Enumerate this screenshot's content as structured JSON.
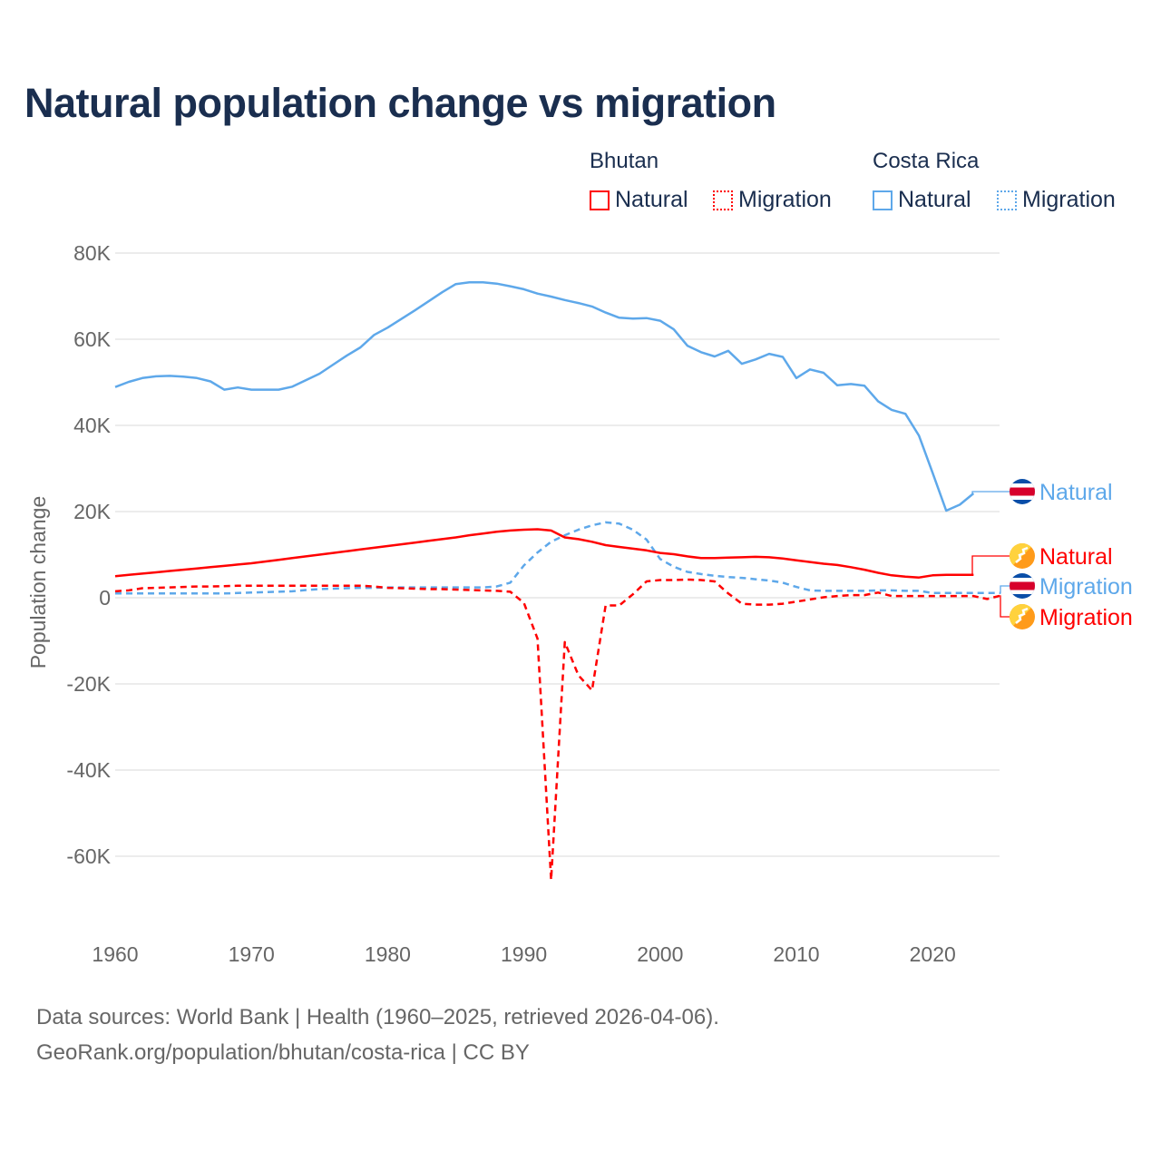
{
  "title": "Natural population change vs migration",
  "legend": {
    "groups": [
      {
        "name": "Bhutan",
        "items": [
          "Natural",
          "Migration"
        ],
        "color": "#ff0000"
      },
      {
        "name": "Costa Rica",
        "items": [
          "Natural",
          "Migration"
        ],
        "color": "#5ea8ea"
      }
    ]
  },
  "end_labels": [
    {
      "text": "Natural",
      "country": "Costa Rica",
      "icon": "costa-rica-flag-icon"
    },
    {
      "text": "Natural",
      "country": "Bhutan",
      "icon": "bhutan-flag-icon"
    },
    {
      "text": "Migration",
      "country": "Costa Rica",
      "icon": "costa-rica-flag-icon"
    },
    {
      "text": "Migration",
      "country": "Bhutan",
      "icon": "bhutan-flag-icon"
    }
  ],
  "footer": {
    "line1": "Data sources: World Bank | Health (1960–2025, retrieved 2026-04-06).",
    "line2": "GeoRank.org/population/bhutan/costa-rica | CC BY"
  },
  "chart_data": {
    "type": "line",
    "title": "Natural population change vs migration",
    "xlabel": "",
    "ylabel": "Population change",
    "xlim": [
      1960,
      2025
    ],
    "ylim": [
      -70000,
      85000
    ],
    "x_ticks": [
      1960,
      1970,
      1980,
      1990,
      2000,
      2010,
      2020
    ],
    "x_tick_labels": [
      "1960",
      "1970",
      "1980",
      "1990",
      "2000",
      "2010",
      "2020"
    ],
    "y_ticks": [
      80000,
      60000,
      40000,
      20000,
      0,
      -20000,
      -40000,
      -60000
    ],
    "y_tick_labels": [
      "80K",
      "60K",
      "40K",
      "20K",
      "0",
      "-20K",
      "-40K",
      "-60K"
    ],
    "grid": true,
    "legend_position": "top-right",
    "series": [
      {
        "name": "Costa Rica Natural",
        "country": "Costa Rica",
        "kind": "Natural",
        "color": "#5ea8ea",
        "dash": false,
        "start_year": 1960,
        "values": [
          48900,
          50100,
          51000,
          51400,
          51500,
          51300,
          51000,
          50200,
          48300,
          48800,
          48300,
          48300,
          48300,
          49000,
          50500,
          52000,
          54100,
          56200,
          58100,
          61000,
          62700,
          64700,
          66700,
          68800,
          70900,
          72800,
          73200,
          73200,
          72900,
          72300,
          71600,
          70600,
          69900,
          69100,
          68400,
          67600,
          66200,
          65000,
          64800,
          64900,
          64300,
          62300,
          58500,
          57000,
          56000,
          57300,
          54300,
          55300,
          56600,
          55900,
          51000,
          53000,
          52200,
          49300,
          49600,
          49200,
          45600,
          43600,
          42700,
          37600,
          29000,
          20200,
          21600,
          24200
        ]
      },
      {
        "name": "Bhutan Natural",
        "country": "Bhutan",
        "kind": "Natural",
        "color": "#ff0000",
        "dash": false,
        "start_year": 1960,
        "values": [
          5000,
          5300,
          5600,
          5900,
          6200,
          6500,
          6800,
          7100,
          7400,
          7700,
          8000,
          8400,
          8800,
          9200,
          9600,
          10000,
          10400,
          10800,
          11200,
          11600,
          12000,
          12400,
          12800,
          13200,
          13600,
          14000,
          14500,
          14900,
          15300,
          15600,
          15800,
          15900,
          15600,
          14000,
          13600,
          13000,
          12200,
          11800,
          11400,
          11000,
          10400,
          10100,
          9600,
          9200,
          9200,
          9300,
          9400,
          9500,
          9400,
          9100,
          8700,
          8300,
          7900,
          7600,
          7100,
          6500,
          5800,
          5200,
          4900,
          4700,
          5200,
          5300,
          5300,
          5300
        ]
      },
      {
        "name": "Costa Rica Migration",
        "country": "Costa Rica",
        "kind": "Migration",
        "color": "#5ea8ea",
        "dash": true,
        "start_year": 1960,
        "values": [
          1000,
          1000,
          1000,
          1000,
          1000,
          1000,
          1000,
          1000,
          1000,
          1100,
          1200,
          1300,
          1400,
          1500,
          1800,
          2000,
          2100,
          2200,
          2300,
          2300,
          2400,
          2400,
          2400,
          2400,
          2400,
          2400,
          2400,
          2400,
          2600,
          3500,
          7500,
          10500,
          13000,
          14500,
          15800,
          16800,
          17500,
          17200,
          15800,
          13500,
          9000,
          7200,
          6000,
          5500,
          5100,
          4800,
          4600,
          4300,
          4000,
          3500,
          2500,
          1700,
          1600,
          1600,
          1600,
          1600,
          1700,
          1700,
          1600,
          1600,
          1100,
          1100,
          1100,
          1100,
          1100,
          1100
        ]
      },
      {
        "name": "Bhutan Migration",
        "country": "Bhutan",
        "kind": "Migration",
        "color": "#ff0000",
        "dash": true,
        "start_year": 1960,
        "values": [
          1500,
          1700,
          2200,
          2300,
          2400,
          2500,
          2600,
          2600,
          2700,
          2800,
          2800,
          2800,
          2800,
          2800,
          2800,
          2800,
          2800,
          2800,
          2800,
          2600,
          2300,
          2200,
          2100,
          2000,
          2000,
          1900,
          1800,
          1700,
          1600,
          1400,
          -1200,
          -9500,
          -65500,
          -10300,
          -18000,
          -21500,
          -1800,
          -1800,
          800,
          3800,
          4100,
          4100,
          4200,
          4100,
          3800,
          1000,
          -1400,
          -1600,
          -1600,
          -1400,
          -900,
          -400,
          100,
          400,
          600,
          600,
          1200,
          400,
          400,
          400,
          400,
          400,
          400,
          400,
          -300,
          500
        ]
      }
    ]
  }
}
